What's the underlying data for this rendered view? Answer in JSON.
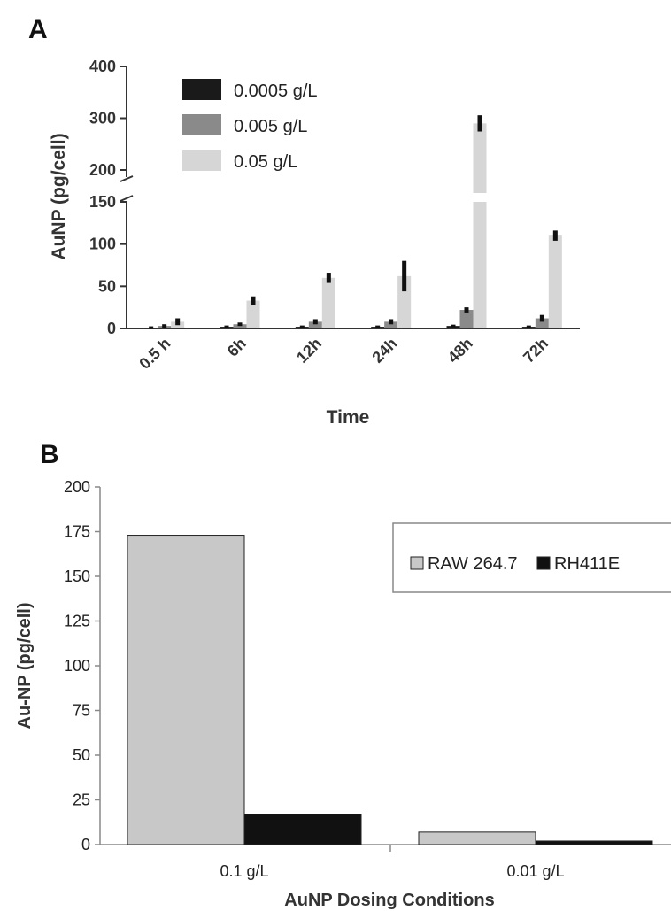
{
  "chart_data": [
    {
      "panel": "A",
      "type": "bar",
      "xlabel": "Time",
      "ylabel": "AuNP (pg/cell)",
      "categories": [
        "0.5 h",
        "6h",
        "12h",
        "24h",
        "48h",
        "72h"
      ],
      "ylim": [
        0,
        400
      ],
      "axis_break": [
        150,
        200
      ],
      "yticks": [
        0,
        50,
        100,
        150,
        200,
        300,
        400
      ],
      "legend_position": "top-left",
      "series": [
        {
          "name": "0.0005 g/L",
          "color": "#1a1a1a",
          "values": [
            1,
            2,
            2,
            2,
            3,
            2
          ],
          "errors": [
            0.5,
            0.5,
            0.5,
            0.5,
            0.5,
            0.5
          ]
        },
        {
          "name": "0.005 g/L",
          "color": "#8a8a8a",
          "values": [
            3,
            5,
            8,
            8,
            22,
            12
          ],
          "errors": [
            1,
            1,
            2,
            2,
            2,
            3
          ]
        },
        {
          "name": "0.05 g/L",
          "color": "#d6d6d6",
          "values": [
            8,
            33,
            60,
            62,
            290,
            110
          ],
          "errors": [
            3,
            4,
            5,
            17,
            14,
            5
          ]
        }
      ]
    },
    {
      "panel": "B",
      "type": "bar",
      "xlabel": "AuNP Dosing Conditions",
      "ylabel": "Au-NP (pg/cell)",
      "categories": [
        "0.1 g/L",
        "0.01 g/L"
      ],
      "ylim": [
        0,
        200
      ],
      "yticks": [
        0,
        25,
        50,
        75,
        100,
        125,
        150,
        175,
        200
      ],
      "legend_position": "top-right",
      "series": [
        {
          "name": "RAW 264.7",
          "color": "#c8c8c8",
          "values": [
            173,
            7
          ]
        },
        {
          "name": "RH411E",
          "color": "#111111",
          "values": [
            17,
            2
          ]
        }
      ]
    }
  ]
}
